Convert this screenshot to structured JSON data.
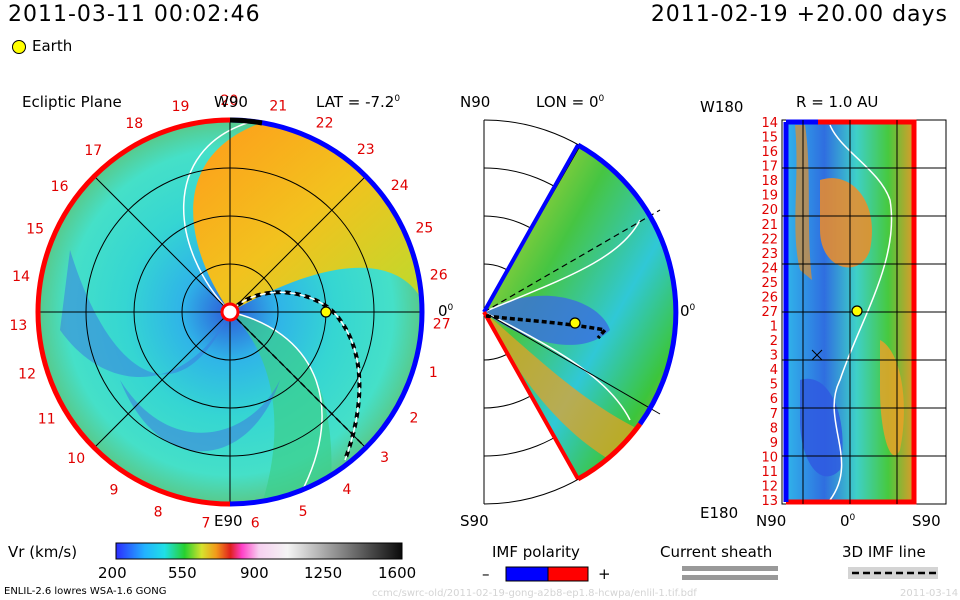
{
  "header": {
    "datetime": "2011-03-11 00:02:46",
    "run": "2011-02-19 +20.00 days"
  },
  "legend": {
    "earth_label": "Earth"
  },
  "panels": {
    "ecliptic": {
      "title": "Ecliptic Plane",
      "lat_label": "LAT = -7.2",
      "deg": "0",
      "top_label": "W90",
      "bottom_label": "E90",
      "right_label": "0",
      "carrington_numbers": [
        "19",
        "20",
        "21",
        "22",
        "23",
        "24",
        "25",
        "26",
        "27",
        "1",
        "2",
        "3",
        "4",
        "5",
        "6",
        "7",
        "8",
        "9",
        "10",
        "11",
        "12",
        "13",
        "14",
        "15",
        "16",
        "17",
        "18"
      ]
    },
    "meridional": {
      "top_label": "N90",
      "lon_label": "LON = 0",
      "deg": "0",
      "bottom_label": "S90",
      "right_label": "0"
    },
    "radial": {
      "top_left_label": "W180",
      "r_label": "R = 1.0 AU",
      "bottom_left_label": "E180",
      "x_labels": [
        "N90",
        "0",
        "S90"
      ],
      "deg": "0",
      "y_labels": [
        "14",
        "15",
        "16",
        "17",
        "18",
        "19",
        "20",
        "21",
        "22",
        "23",
        "24",
        "25",
        "26",
        "27",
        "1",
        "2",
        "3",
        "4",
        "5",
        "6",
        "7",
        "8",
        "9",
        "10",
        "11",
        "12",
        "13"
      ]
    }
  },
  "colorbar": {
    "title": "Vr (km/s)",
    "ticks": [
      "200",
      "550",
      "900",
      "1250",
      "1600"
    ]
  },
  "imf_polarity": {
    "title": "IMF polarity",
    "minus": "–",
    "plus": "+"
  },
  "current_sheath": {
    "title": "Current sheath"
  },
  "imf_line": {
    "title": "3D IMF line"
  },
  "footer": {
    "model": "ENLIL-2.6 lowres WSA-1.6 GONG",
    "path": "ccmc/swrc-old/2011-02-19-gong-a2b8-ep1.8-hcwpa/enlil-1.tif.bdf",
    "date": "2011-03-14"
  },
  "colors": {
    "low": "#2e5bd8",
    "mid": "#2fd0e6",
    "green": "#3cc23c",
    "yellow": "#e8e040",
    "high": "#f0921e",
    "red_polarity": "#ff0000",
    "blue_polarity": "#0000ff",
    "carrington_text": "#e00000"
  }
}
